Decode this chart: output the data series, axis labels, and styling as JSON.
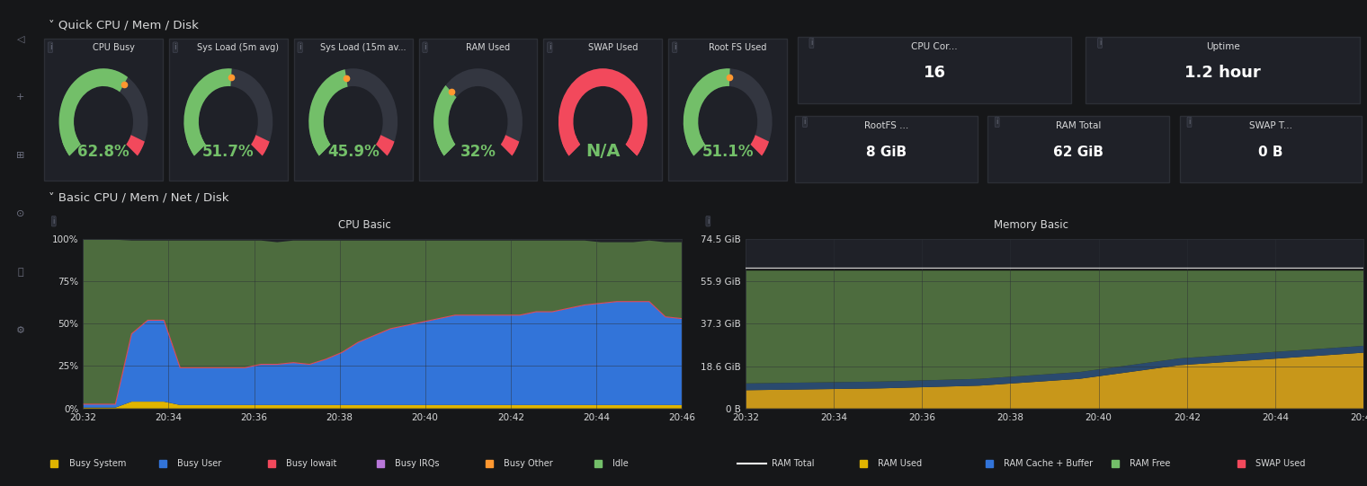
{
  "bg_color": "#161719",
  "panel_bg": "#1f2128",
  "panel_border": "#2c2f36",
  "text_color": "#d8d9da",
  "title_color": "#ffffff",
  "green": "#73bf69",
  "red": "#f2495c",
  "orange": "#ff9830",
  "sidebar_color": "#0d0e10",
  "gauges": [
    {
      "label": "CPU Busy",
      "value": 62.8,
      "unit": "%",
      "color_arc": "#73bf69"
    },
    {
      "label": "Sys Load (5m avg)",
      "value": 51.7,
      "unit": "%",
      "color_arc": "#73bf69"
    },
    {
      "label": "Sys Load (15m av...",
      "value": 45.9,
      "unit": "%",
      "color_arc": "#73bf69"
    },
    {
      "label": "RAM Used",
      "value": 32,
      "unit": "%",
      "color_arc": "#73bf69"
    },
    {
      "label": "SWAP Used",
      "value": null,
      "unit": "",
      "color_arc": "#f2495c",
      "text": "N/A"
    },
    {
      "label": "Root FS Used",
      "value": 51.1,
      "unit": "%",
      "color_arc": "#73bf69"
    }
  ],
  "stat_panels": [
    {
      "label": "CPU Cor...",
      "value": "16"
    },
    {
      "label": "Uptime",
      "value": "1.2 hour"
    },
    {
      "label": "RootFS ...",
      "value": "8 GiB"
    },
    {
      "label": "RAM Total",
      "value": "62 GiB"
    },
    {
      "label": "SWAP T...",
      "value": "0 B"
    }
  ],
  "cpu_times": [
    0,
    1,
    2,
    3,
    4,
    5,
    6,
    7,
    8,
    9,
    10,
    11,
    12,
    13,
    14,
    15,
    16,
    17,
    18,
    19,
    20,
    21,
    22,
    23,
    24,
    25,
    26,
    27,
    28,
    29,
    30,
    31,
    32,
    33,
    34,
    35,
    36,
    37
  ],
  "cpu_idle": [
    97,
    97,
    97,
    55,
    47,
    47,
    75,
    75,
    75,
    75,
    75,
    73,
    72,
    72,
    73,
    70,
    66,
    60,
    56,
    52,
    50,
    48,
    46,
    44,
    44,
    44,
    44,
    44,
    42,
    42,
    40,
    38,
    36,
    35,
    35,
    36,
    44,
    45
  ],
  "cpu_user": [
    2,
    2,
    2,
    40,
    48,
    48,
    22,
    22,
    22,
    22,
    22,
    24,
    24,
    25,
    24,
    27,
    31,
    37,
    41,
    45,
    47,
    49,
    51,
    53,
    53,
    53,
    53,
    53,
    55,
    55,
    57,
    59,
    60,
    61,
    61,
    61,
    52,
    51
  ],
  "cpu_system": [
    0.5,
    0.5,
    0.5,
    4,
    4,
    4,
    2,
    2,
    2,
    2,
    2,
    2,
    2,
    2,
    2,
    2,
    2,
    2,
    2,
    2,
    2,
    2,
    2,
    2,
    2,
    2,
    2,
    2,
    2,
    2,
    2,
    2,
    2,
    2,
    2,
    2,
    2,
    2
  ],
  "cpu_iowait": [
    0.2,
    0.2,
    0.2,
    0.5,
    0.5,
    0.5,
    0.3,
    0.3,
    0.3,
    0.3,
    0.3,
    0.3,
    0.3,
    0.3,
    0.3,
    0.3,
    0.3,
    0.3,
    0.3,
    0.3,
    0.3,
    0.3,
    0.3,
    0.3,
    0.3,
    0.3,
    0.3,
    0.3,
    0.3,
    0.3,
    0.3,
    0.3,
    0.3,
    0.3,
    0.3,
    0.3,
    0.3,
    0.3
  ],
  "mem_times": [
    0,
    1,
    2,
    3,
    4,
    5,
    6,
    7,
    8,
    9,
    10,
    11,
    12,
    13,
    14,
    15,
    16,
    17,
    18,
    19,
    20,
    21,
    22,
    23,
    24,
    25,
    26,
    27,
    28,
    29,
    30,
    31,
    32,
    33,
    34,
    35,
    36,
    37
  ],
  "ram_total": [
    62,
    62,
    62,
    62,
    62,
    62,
    62,
    62,
    62,
    62,
    62,
    62,
    62,
    62,
    62,
    62,
    62,
    62,
    62,
    62,
    62,
    62,
    62,
    62,
    62,
    62,
    62,
    62,
    62,
    62,
    62,
    62,
    62,
    62,
    62,
    62,
    62,
    62
  ],
  "ram_used": [
    8,
    8.1,
    8.2,
    8.3,
    8.4,
    8.5,
    8.6,
    8.7,
    8.8,
    9.0,
    9.2,
    9.4,
    9.6,
    9.8,
    10,
    10.5,
    11,
    11.5,
    12,
    12.5,
    13,
    14,
    15,
    16,
    17,
    18,
    19,
    19.5,
    20,
    20.5,
    21,
    21.5,
    22,
    22.5,
    23,
    23.5,
    24,
    24.5
  ],
  "ram_cache": [
    3,
    3,
    3,
    3,
    3,
    3,
    3,
    3,
    3,
    3,
    3,
    3,
    3,
    3,
    3,
    3,
    3,
    3,
    3,
    3,
    3,
    3,
    3,
    3,
    3,
    3,
    3,
    3,
    3,
    3,
    3,
    3,
    3,
    3,
    3,
    3,
    3,
    3
  ],
  "ram_free": [
    50,
    49.9,
    49.8,
    49.7,
    49.6,
    49.5,
    49.4,
    49.3,
    49.2,
    49.0,
    48.8,
    48.6,
    48.4,
    48.2,
    48,
    47.5,
    47,
    46.5,
    46,
    45.5,
    45,
    44,
    43,
    42,
    41,
    40,
    39,
    38.5,
    38,
    37.5,
    37,
    36.5,
    36,
    35.5,
    35,
    34.5,
    34,
    33.5
  ],
  "swap_used_mem": [
    0.05,
    0.05,
    0.05,
    0.05,
    0.05,
    0.05,
    0.05,
    0.05,
    0.05,
    0.05,
    0.05,
    0.05,
    0.05,
    0.05,
    0.05,
    0.05,
    0.05,
    0.05,
    0.05,
    0.05,
    0.05,
    0.05,
    0.05,
    0.05,
    0.05,
    0.05,
    0.05,
    0.05,
    0.05,
    0.05,
    0.05,
    0.05,
    0.05,
    0.05,
    0.05,
    0.05,
    0.05,
    0.05
  ],
  "time_labels": [
    "20:32",
    "20:34",
    "20:36",
    "20:38",
    "20:40",
    "20:42",
    "20:44",
    "20:46"
  ],
  "cpu_legend": [
    {
      "label": "Busy System",
      "color": "#e0b400"
    },
    {
      "label": "Busy User",
      "color": "#3274d9"
    },
    {
      "label": "Busy Iowait",
      "color": "#f2495c"
    },
    {
      "label": "Busy IRQs",
      "color": "#b877d9"
    },
    {
      "label": "Busy Other",
      "color": "#ff9830"
    },
    {
      "label": "Idle",
      "color": "#73bf69"
    }
  ],
  "mem_legend": [
    {
      "label": "RAM Total",
      "color": "#ffffff",
      "line": true
    },
    {
      "label": "RAM Used",
      "color": "#e0b400"
    },
    {
      "label": "RAM Cache + Buffer",
      "color": "#3274d9"
    },
    {
      "label": "RAM Free",
      "color": "#73bf69"
    },
    {
      "label": "SWAP Used",
      "color": "#f2495c"
    }
  ]
}
